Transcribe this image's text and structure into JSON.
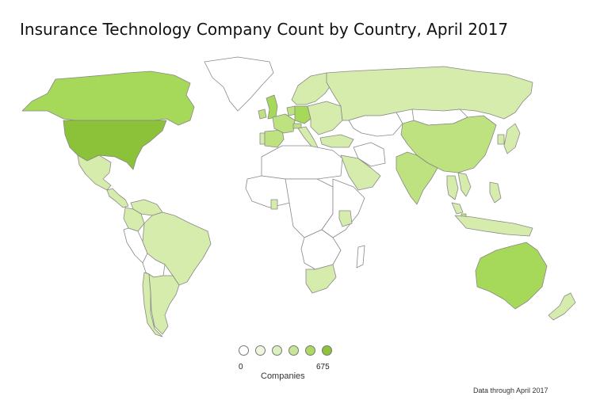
{
  "title": "Insurance Technology Company Count by Country, April 2017",
  "legend": {
    "title": "Companies",
    "min_label": "0",
    "max_label": "675",
    "scale_colors": [
      "#ffffff",
      "#eef6dd",
      "#dcefbf",
      "#c6e595",
      "#acd863",
      "#8fc13a"
    ]
  },
  "footnote": "Data through April 2017",
  "colors": {
    "none": "#ffffff",
    "level1": "#d6ecac",
    "level2": "#bde27f",
    "level3": "#a6d95a",
    "level4": "#8cc13a",
    "border": "#888888"
  },
  "countries": [
    {
      "name": "United States",
      "level": 4
    },
    {
      "name": "Canada",
      "level": 3
    },
    {
      "name": "Mexico",
      "level": 1
    },
    {
      "name": "Brazil",
      "level": 1
    },
    {
      "name": "Argentina",
      "level": 1
    },
    {
      "name": "Chile",
      "level": 1
    },
    {
      "name": "Colombia",
      "level": 1
    },
    {
      "name": "Venezuela",
      "level": 1
    },
    {
      "name": "Peru",
      "level": 0
    },
    {
      "name": "Bolivia",
      "level": 0
    },
    {
      "name": "United Kingdom",
      "level": 3
    },
    {
      "name": "Ireland",
      "level": 2
    },
    {
      "name": "France",
      "level": 2
    },
    {
      "name": "Spain",
      "level": 2
    },
    {
      "name": "Portugal",
      "level": 1
    },
    {
      "name": "Germany",
      "level": 3
    },
    {
      "name": "Italy",
      "level": 1
    },
    {
      "name": "Switzerland",
      "level": 2
    },
    {
      "name": "Netherlands",
      "level": 2
    },
    {
      "name": "Scandinavia",
      "level": 1
    },
    {
      "name": "Eastern Europe",
      "level": 1
    },
    {
      "name": "Russia",
      "level": 1
    },
    {
      "name": "Turkey",
      "level": 1
    },
    {
      "name": "Kazakhstan",
      "level": 0
    },
    {
      "name": "Mongolia",
      "level": 0
    },
    {
      "name": "China",
      "level": 2
    },
    {
      "name": "India",
      "level": 2
    },
    {
      "name": "Japan",
      "level": 1
    },
    {
      "name": "South Korea",
      "level": 1
    },
    {
      "name": "Indonesia",
      "level": 1
    },
    {
      "name": "Philippines",
      "level": 1
    },
    {
      "name": "Thailand",
      "level": 1
    },
    {
      "name": "Vietnam",
      "level": 1
    },
    {
      "name": "Malaysia",
      "level": 1
    },
    {
      "name": "Singapore",
      "level": 2
    },
    {
      "name": "Australia",
      "level": 3
    },
    {
      "name": "New Zealand",
      "level": 1
    },
    {
      "name": "South Africa",
      "level": 1
    },
    {
      "name": "Kenya",
      "level": 1
    },
    {
      "name": "Ghana",
      "level": 1
    },
    {
      "name": "Arabian Peninsula",
      "level": 1
    },
    {
      "name": "Iran",
      "level": 0
    },
    {
      "name": "North Africa",
      "level": 0
    },
    {
      "name": "West Africa",
      "level": 0
    },
    {
      "name": "Central Africa",
      "level": 0
    },
    {
      "name": "East Africa",
      "level": 0
    },
    {
      "name": "Southern Africa",
      "level": 0
    },
    {
      "name": "Madagascar",
      "level": 0
    },
    {
      "name": "Greenland",
      "level": 0
    },
    {
      "name": "Central America",
      "level": 1
    }
  ]
}
